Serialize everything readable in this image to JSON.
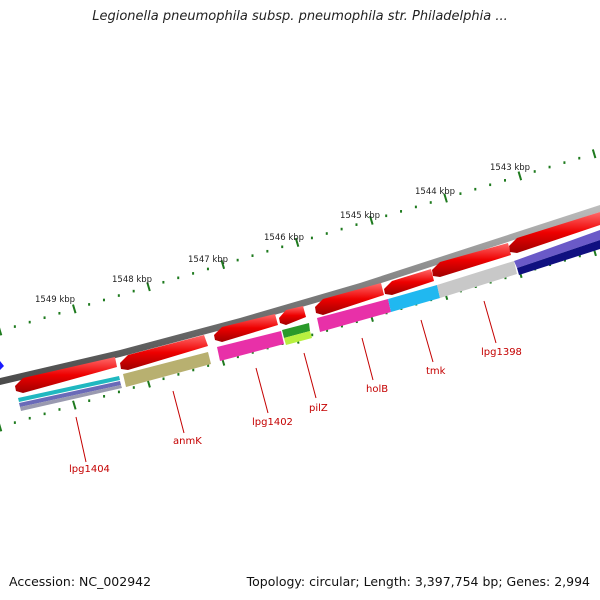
{
  "title": "Legionella pneumophila subsp. pneumophila str. Philadelphia ...",
  "footer": {
    "accession": "Accession: NC_002942",
    "summary": "Topology: circular; Length: 3,397,754 bp; Genes: 2,994"
  },
  "kbp_ticks": [
    "1549 kbp",
    "1548 kbp",
    "1547 kbp",
    "1546 kbp",
    "1545 kbp",
    "1544 kbp",
    "1543 kbp"
  ],
  "gene_labels": [
    "lpg1404",
    "anmK",
    "lpg1402",
    "pilZ",
    "holB",
    "tmk",
    "lpg1398"
  ],
  "colors": {
    "backbone": "#8a8a8a",
    "gene_arrow": "#ee0000",
    "label": "#c40000",
    "tick": "#1e7a1e"
  }
}
